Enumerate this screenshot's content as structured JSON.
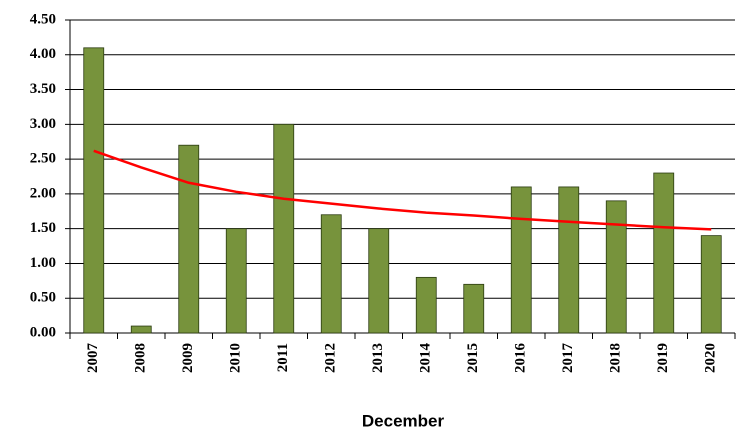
{
  "chart_data": {
    "type": "bar",
    "x_label": "December",
    "categories": [
      "2007",
      "2008",
      "2009",
      "2010",
      "2011",
      "2012",
      "2013",
      "2014",
      "2015",
      "2016",
      "2017",
      "2018",
      "2019",
      "2020"
    ],
    "series": [
      {
        "type": "bar",
        "color": "#77933c",
        "values": [
          4.1,
          0.1,
          2.7,
          1.5,
          3.0,
          1.7,
          1.5,
          0.8,
          0.7,
          2.1,
          2.1,
          1.9,
          2.3,
          1.4
        ]
      },
      {
        "type": "line",
        "color": "#ff0000",
        "values": [
          2.62,
          2.38,
          2.16,
          2.03,
          1.93,
          1.86,
          1.79,
          1.73,
          1.69,
          1.64,
          1.6,
          1.56,
          1.52,
          1.49
        ]
      }
    ],
    "ylim": [
      0,
      4.5
    ],
    "yticks": [
      {
        "value": 0,
        "label": "0.00"
      },
      {
        "value": 0.5,
        "label": "0.50"
      },
      {
        "value": 1,
        "label": "1.00"
      },
      {
        "value": 1.5,
        "label": "1.50"
      },
      {
        "value": 2,
        "label": "2.00"
      },
      {
        "value": 2.5,
        "label": "2.50"
      },
      {
        "value": 3,
        "label": "3.00"
      },
      {
        "value": 3.5,
        "label": "3.50"
      },
      {
        "value": 4,
        "label": "4.00"
      },
      {
        "value": 4.5,
        "label": "4.50"
      }
    ],
    "grid": true
  }
}
